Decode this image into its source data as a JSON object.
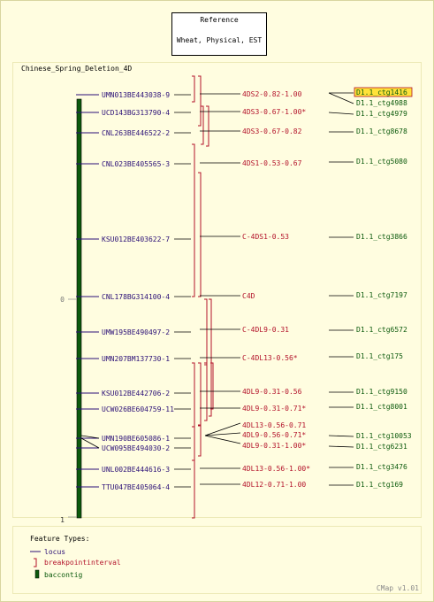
{
  "reference": {
    "label": "Reference",
    "subtitle": "Wheat, Physical, EST"
  },
  "map_title": "Chinese_Spring_Deletion_4D",
  "axis": {
    "top_tick": "0",
    "bottom_tick": "1"
  },
  "loci": [
    {
      "name": "UMN013BE443038-9"
    },
    {
      "name": "UCD143BG313790-4"
    },
    {
      "name": "CNL263BE446522-2"
    },
    {
      "name": "CNL023BE405565-3"
    },
    {
      "name": "KSU012BE403622-7"
    },
    {
      "name": "CNL178BG314100-4"
    },
    {
      "name": "UMW195BE490497-2"
    },
    {
      "name": "UMN207BM137730-1"
    },
    {
      "name": "KSU012BE442706-2"
    },
    {
      "name": "UCW026BE604759-11"
    },
    {
      "name": "UMN190BE605086-1"
    },
    {
      "name": "UCW095BE494030-2"
    },
    {
      "name": "UNL002BE444616-3"
    },
    {
      "name": "TTU047BE405064-4"
    }
  ],
  "intervals": [
    {
      "name": "4DS2-0.82-1.00"
    },
    {
      "name": "4DS3-0.67-1.00*"
    },
    {
      "name": "4DS3-0.67-0.82"
    },
    {
      "name": "4DS1-0.53-0.67"
    },
    {
      "name": "C-4DS1-0.53"
    },
    {
      "name": "C4D"
    },
    {
      "name": "C-4DL9-0.31"
    },
    {
      "name": "C-4DL13-0.56*"
    },
    {
      "name": "4DL9-0.31-0.56"
    },
    {
      "name": "4DL9-0.31-0.71*"
    },
    {
      "name": "4DL13-0.56-0.71"
    },
    {
      "name": "4DL9-0.56-0.71*"
    },
    {
      "name": "4DL9-0.31-1.00*"
    },
    {
      "name": "4DL13-0.56-1.00*"
    },
    {
      "name": "4DL12-0.71-1.00"
    }
  ],
  "contigs": [
    {
      "name": "D1.1_ctg1416",
      "highlighted": true
    },
    {
      "name": "D1.1_ctg4988"
    },
    {
      "name": "D1.1_ctg4979"
    },
    {
      "name": "D1.1_ctg8678"
    },
    {
      "name": "D1.1_ctg5080"
    },
    {
      "name": "D1.1_ctg3866"
    },
    {
      "name": "D1.1_ctg7197"
    },
    {
      "name": "D1.1_ctg6572"
    },
    {
      "name": "D1.1_ctg175"
    },
    {
      "name": "D1.1_ctg9150"
    },
    {
      "name": "D1.1_ctg8001"
    },
    {
      "name": "D1.1_ctg10053"
    },
    {
      "name": "D1.1_ctg6231"
    },
    {
      "name": "D1.1_ctg3476"
    },
    {
      "name": "D1.1_ctg169"
    }
  ],
  "legend": {
    "title": "Feature Types:",
    "items": [
      {
        "label": "locus",
        "kind": "line",
        "color": "#2b1077"
      },
      {
        "label": "breakpointinterval",
        "kind": "bracket",
        "color": "#b3122a"
      },
      {
        "label": "baccontig",
        "kind": "bar",
        "color": "#0c5a0c"
      }
    ]
  },
  "footer": "CMap v1.01",
  "colors": {
    "background": "#fffde0",
    "frame": "#ece9b6",
    "locus": "#2b1077",
    "interval": "#b3122a",
    "contig": "#0c5a0c",
    "highlight": "#ffe23a"
  }
}
